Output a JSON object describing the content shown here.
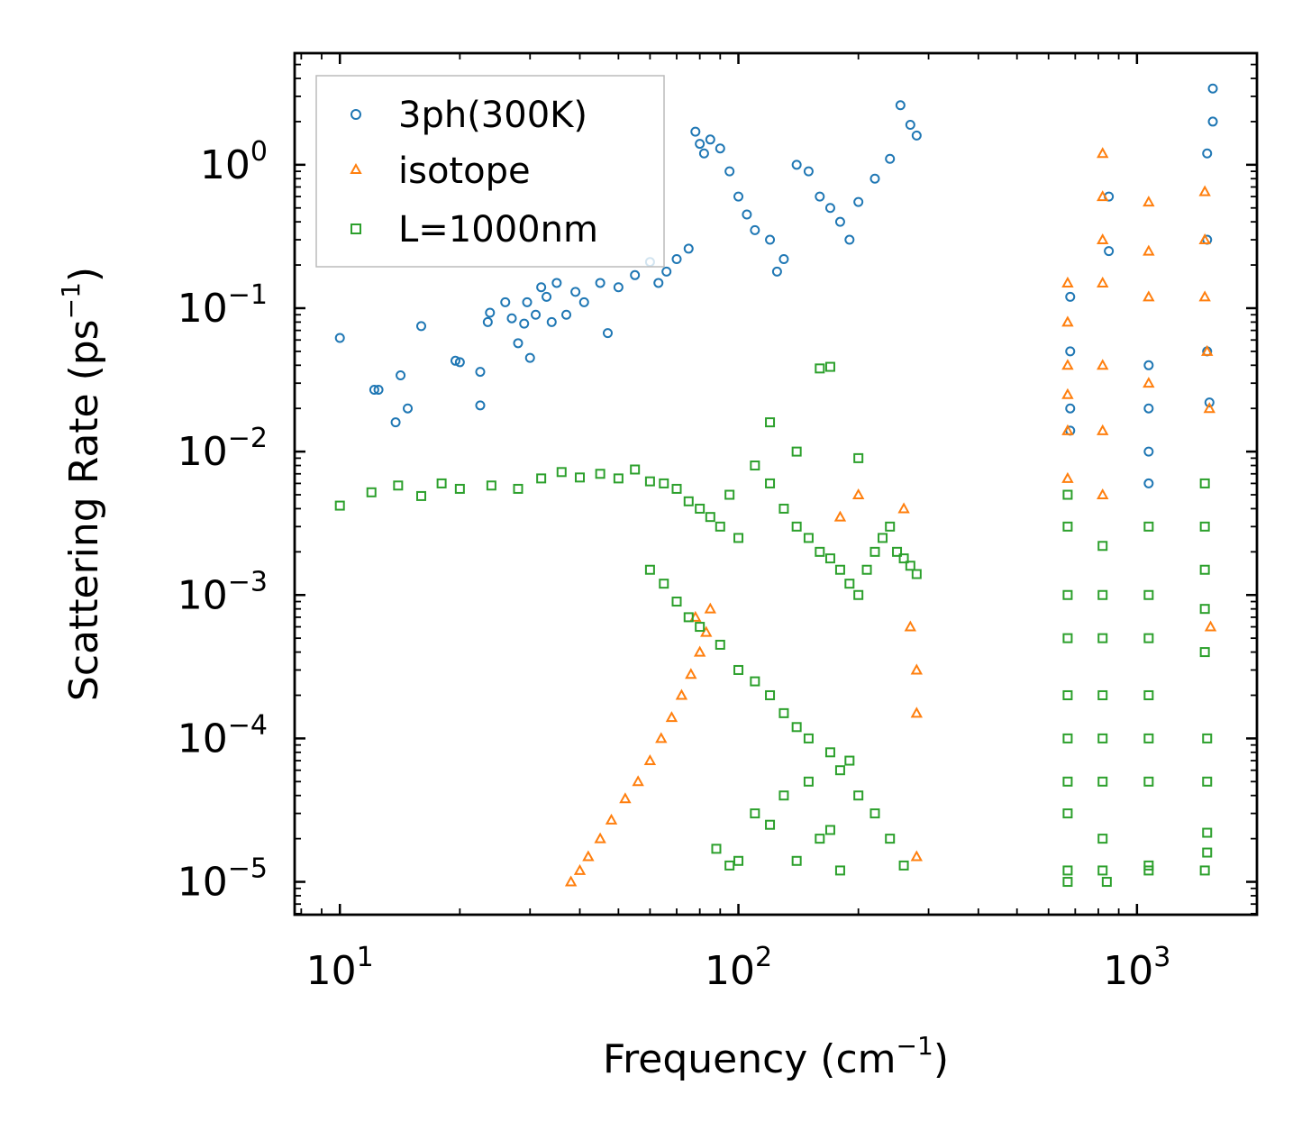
{
  "chart_data": {
    "type": "scatter",
    "xscale": "log",
    "yscale": "log",
    "xlim": [
      7.7,
      2000
    ],
    "ylim": [
      5.9e-06,
      6.0
    ],
    "xlabel": "Frequency (cm",
    "ylabel": "Scattering Rate (ps",
    "label_exponent": "−1",
    "label_close": ")",
    "xticks": [
      {
        "value": 10,
        "base": "10",
        "exp": "1"
      },
      {
        "value": 100,
        "base": "10",
        "exp": "2"
      },
      {
        "value": 1000,
        "base": "10",
        "exp": "3"
      }
    ],
    "yticks": [
      {
        "value": 1,
        "base": "10",
        "exp": "0"
      },
      {
        "value": 0.1,
        "base": "10",
        "exp": "−1"
      },
      {
        "value": 0.01,
        "base": "10",
        "exp": "−2"
      },
      {
        "value": 0.001,
        "base": "10",
        "exp": "−3"
      },
      {
        "value": 0.0001,
        "base": "10",
        "exp": "−4"
      },
      {
        "value": 1e-05,
        "base": "10",
        "exp": "−5"
      }
    ],
    "legend_position": "top-left",
    "series": [
      {
        "name": "3ph(300K)",
        "marker": "circle",
        "color": "#1f77b4",
        "points": [
          [
            10,
            0.062
          ],
          [
            12.2,
            0.027
          ],
          [
            12.5,
            0.027
          ],
          [
            13.8,
            0.016
          ],
          [
            14.2,
            0.034
          ],
          [
            14.8,
            0.02
          ],
          [
            16,
            0.075
          ],
          [
            19.5,
            0.043
          ],
          [
            20,
            0.042
          ],
          [
            22.5,
            0.036
          ],
          [
            22.5,
            0.021
          ],
          [
            23.5,
            0.08
          ],
          [
            23.8,
            0.093
          ],
          [
            26,
            0.11
          ],
          [
            27,
            0.085
          ],
          [
            28,
            0.057
          ],
          [
            29,
            0.078
          ],
          [
            30,
            0.045
          ],
          [
            29.5,
            0.11
          ],
          [
            31,
            0.09
          ],
          [
            32,
            0.14
          ],
          [
            33,
            0.12
          ],
          [
            34,
            0.08
          ],
          [
            35,
            0.15
          ],
          [
            37,
            0.09
          ],
          [
            39,
            0.13
          ],
          [
            41,
            0.11
          ],
          [
            45,
            0.15
          ],
          [
            47,
            0.067
          ],
          [
            50,
            0.14
          ],
          [
            55,
            0.17
          ],
          [
            60,
            0.21
          ],
          [
            63,
            0.15
          ],
          [
            66,
            0.18
          ],
          [
            70,
            0.22
          ],
          [
            75,
            0.26
          ],
          [
            78,
            1.7
          ],
          [
            80,
            1.4
          ],
          [
            82,
            1.2
          ],
          [
            85,
            1.5
          ],
          [
            90,
            1.3
          ],
          [
            95,
            0.9
          ],
          [
            100,
            0.6
          ],
          [
            105,
            0.45
          ],
          [
            110,
            0.35
          ],
          [
            120,
            0.3
          ],
          [
            125,
            0.18
          ],
          [
            130,
            0.22
          ],
          [
            140,
            1.0
          ],
          [
            150,
            0.9
          ],
          [
            160,
            0.6
          ],
          [
            170,
            0.5
          ],
          [
            180,
            0.4
          ],
          [
            190,
            0.3
          ],
          [
            200,
            0.55
          ],
          [
            220,
            0.8
          ],
          [
            240,
            1.1
          ],
          [
            255,
            2.6
          ],
          [
            270,
            1.9
          ],
          [
            280,
            1.6
          ],
          [
            680,
            0.12
          ],
          [
            680,
            0.05
          ],
          [
            680,
            0.02
          ],
          [
            680,
            0.014
          ],
          [
            850,
            0.25
          ],
          [
            850,
            0.6
          ],
          [
            1070,
            0.04
          ],
          [
            1070,
            0.02
          ],
          [
            1070,
            0.01
          ],
          [
            1070,
            0.006
          ],
          [
            1500,
            1.2
          ],
          [
            1550,
            3.4
          ],
          [
            1550,
            2.0
          ],
          [
            1500,
            0.3
          ],
          [
            1500,
            0.05
          ],
          [
            1520,
            0.022
          ]
        ]
      },
      {
        "name": "isotope",
        "marker": "triangle",
        "color": "#ff7f0e",
        "points": [
          [
            38,
            1e-05
          ],
          [
            40,
            1.2e-05
          ],
          [
            42,
            1.5e-05
          ],
          [
            45,
            2e-05
          ],
          [
            48,
            2.7e-05
          ],
          [
            52,
            3.8e-05
          ],
          [
            56,
            5e-05
          ],
          [
            60,
            7e-05
          ],
          [
            64,
            0.0001
          ],
          [
            68,
            0.00014
          ],
          [
            72,
            0.0002
          ],
          [
            76,
            0.00028
          ],
          [
            80,
            0.0004
          ],
          [
            83,
            0.00055
          ],
          [
            78,
            0.0007
          ],
          [
            85,
            0.0008
          ],
          [
            180,
            0.0035
          ],
          [
            200,
            0.005
          ],
          [
            260,
            0.004
          ],
          [
            270,
            0.0006
          ],
          [
            280,
            0.0003
          ],
          [
            280,
            0.00015
          ],
          [
            280,
            1.5e-05
          ],
          [
            670,
            0.15
          ],
          [
            670,
            0.08
          ],
          [
            670,
            0.04
          ],
          [
            670,
            0.025
          ],
          [
            670,
            0.014
          ],
          [
            670,
            0.0065
          ],
          [
            820,
            1.2
          ],
          [
            820,
            0.6
          ],
          [
            820,
            0.3
          ],
          [
            820,
            0.15
          ],
          [
            820,
            0.04
          ],
          [
            820,
            0.014
          ],
          [
            820,
            0.005
          ],
          [
            1070,
            0.55
          ],
          [
            1070,
            0.25
          ],
          [
            1070,
            0.12
          ],
          [
            1070,
            0.03
          ],
          [
            1480,
            0.65
          ],
          [
            1480,
            0.3
          ],
          [
            1480,
            0.12
          ],
          [
            1500,
            0.05
          ],
          [
            1520,
            0.02
          ],
          [
            1530,
            0.0006
          ]
        ]
      },
      {
        "name": "L=1000nm",
        "marker": "square",
        "color": "#2ca02c",
        "points": [
          [
            10,
            0.0042
          ],
          [
            12,
            0.0052
          ],
          [
            14,
            0.0058
          ],
          [
            16,
            0.0049
          ],
          [
            18,
            0.006
          ],
          [
            20,
            0.0055
          ],
          [
            24,
            0.0058
          ],
          [
            28,
            0.0055
          ],
          [
            32,
            0.0065
          ],
          [
            36,
            0.0072
          ],
          [
            40,
            0.0066
          ],
          [
            45,
            0.007
          ],
          [
            50,
            0.0065
          ],
          [
            55,
            0.0075
          ],
          [
            60,
            0.0062
          ],
          [
            65,
            0.006
          ],
          [
            70,
            0.0055
          ],
          [
            75,
            0.0045
          ],
          [
            80,
            0.004
          ],
          [
            85,
            0.0035
          ],
          [
            90,
            0.003
          ],
          [
            95,
            0.005
          ],
          [
            100,
            0.0025
          ],
          [
            110,
            0.008
          ],
          [
            120,
            0.006
          ],
          [
            130,
            0.004
          ],
          [
            140,
            0.003
          ],
          [
            150,
            0.0025
          ],
          [
            160,
            0.002
          ],
          [
            170,
            0.0018
          ],
          [
            180,
            0.0015
          ],
          [
            190,
            0.0012
          ],
          [
            200,
            0.001
          ],
          [
            210,
            0.0015
          ],
          [
            220,
            0.002
          ],
          [
            230,
            0.0025
          ],
          [
            240,
            0.003
          ],
          [
            250,
            0.002
          ],
          [
            260,
            0.0018
          ],
          [
            270,
            0.0016
          ],
          [
            280,
            0.0014
          ],
          [
            60,
            0.0015
          ],
          [
            65,
            0.0012
          ],
          [
            70,
            0.0009
          ],
          [
            75,
            0.0007
          ],
          [
            80,
            0.0006
          ],
          [
            90,
            0.00045
          ],
          [
            100,
            0.0003
          ],
          [
            110,
            0.00025
          ],
          [
            120,
            0.0002
          ],
          [
            130,
            0.00015
          ],
          [
            140,
            0.00012
          ],
          [
            150,
            0.0001
          ],
          [
            170,
            8e-05
          ],
          [
            180,
            6e-05
          ],
          [
            200,
            4e-05
          ],
          [
            220,
            3e-05
          ],
          [
            240,
            2e-05
          ],
          [
            260,
            1.3e-05
          ],
          [
            88,
            1.7e-05
          ],
          [
            95,
            1.3e-05
          ],
          [
            100,
            1.4e-05
          ],
          [
            110,
            3e-05
          ],
          [
            120,
            2.5e-05
          ],
          [
            130,
            4e-05
          ],
          [
            140,
            1.4e-05
          ],
          [
            150,
            5e-05
          ],
          [
            160,
            2e-05
          ],
          [
            170,
            2.3e-05
          ],
          [
            180,
            1.2e-05
          ],
          [
            190,
            7e-05
          ],
          [
            170,
            0.039
          ],
          [
            160,
            0.038
          ],
          [
            120,
            0.016
          ],
          [
            140,
            0.01
          ],
          [
            200,
            0.009
          ],
          [
            670,
            0.005
          ],
          [
            670,
            0.003
          ],
          [
            670,
            0.001
          ],
          [
            670,
            0.0005
          ],
          [
            670,
            0.0002
          ],
          [
            670,
            0.0001
          ],
          [
            670,
            5e-05
          ],
          [
            670,
            3e-05
          ],
          [
            670,
            1.2e-05
          ],
          [
            670,
            1e-05
          ],
          [
            820,
            0.0022
          ],
          [
            820,
            0.001
          ],
          [
            820,
            0.0005
          ],
          [
            820,
            0.0002
          ],
          [
            820,
            0.0001
          ],
          [
            820,
            5e-05
          ],
          [
            820,
            2e-05
          ],
          [
            820,
            1.2e-05
          ],
          [
            840,
            1e-05
          ],
          [
            1070,
            0.003
          ],
          [
            1070,
            0.001
          ],
          [
            1070,
            0.0005
          ],
          [
            1070,
            0.0002
          ],
          [
            1070,
            0.0001
          ],
          [
            1070,
            5e-05
          ],
          [
            1070,
            1.3e-05
          ],
          [
            1070,
            1.2e-05
          ],
          [
            1480,
            0.006
          ],
          [
            1480,
            0.003
          ],
          [
            1480,
            0.0015
          ],
          [
            1480,
            0.0008
          ],
          [
            1480,
            0.0004
          ],
          [
            1500,
            0.0001
          ],
          [
            1500,
            5e-05
          ],
          [
            1500,
            2.2e-05
          ],
          [
            1500,
            1.6e-05
          ],
          [
            1480,
            1.2e-05
          ]
        ]
      }
    ]
  }
}
